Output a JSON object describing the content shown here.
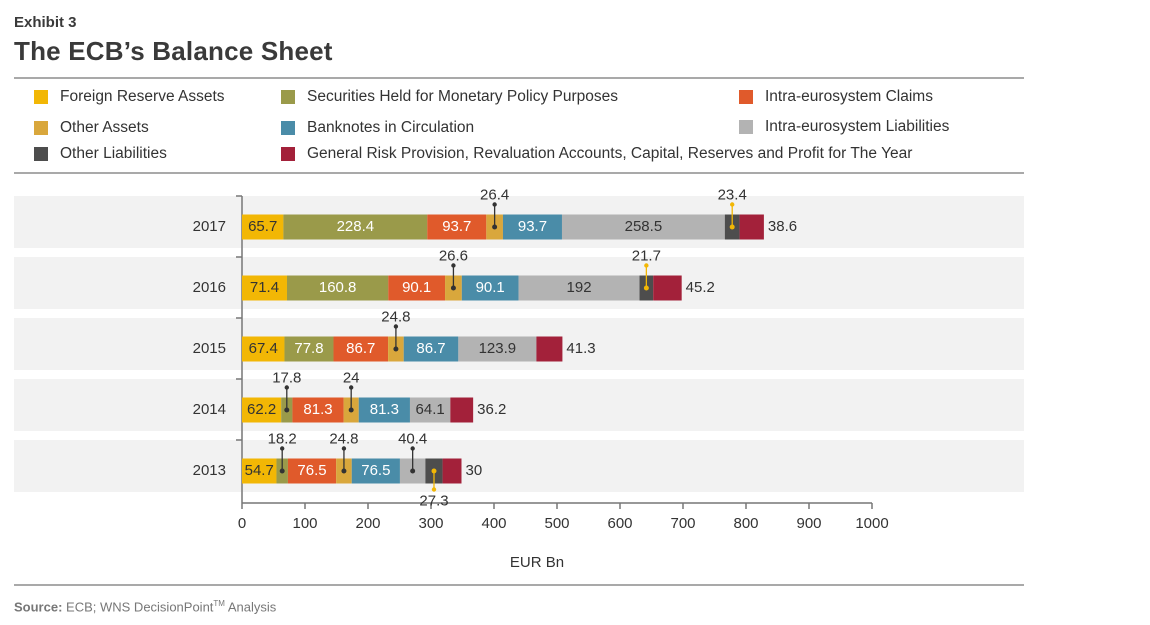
{
  "exhibit": "Exhibit 3",
  "title": "The ECB’s Balance Sheet",
  "source": {
    "label": "Source:",
    "text": "ECB; WNS DecisionPoint",
    "tm": "TM",
    "suffix": " Analysis"
  },
  "legend": [
    {
      "key": "fra",
      "label": "Foreign Reserve Assets",
      "color": "#f2b705"
    },
    {
      "key": "smp",
      "label": "Securities Held for Monetary Policy Purposes",
      "color": "#9a9a4a"
    },
    {
      "key": "iec",
      "label": "Intra-eurosystem Claims",
      "color": "#e05a2b"
    },
    {
      "key": "oa",
      "label": "Other Assets",
      "color": "#d9a73c"
    },
    {
      "key": "bn",
      "label": "Banknotes in Circulation",
      "color": "#4a8ca8"
    },
    {
      "key": "iel",
      "label": "Intra-eurosystem Liabilities",
      "color": "#b3b3b3"
    },
    {
      "key": "ol",
      "label": "Other Liabilities",
      "color": "#4d4d4d"
    },
    {
      "key": "grp",
      "label": "General Risk Provision, Revaluation Accounts, Capital, Reserves and Profit for The Year",
      "color": "#a3213a"
    }
  ],
  "chart_data": {
    "type": "bar",
    "orientation": "horizontal",
    "stacked": true,
    "categories": [
      "2017",
      "2016",
      "2015",
      "2014",
      "2013"
    ],
    "series": [
      {
        "name": "Foreign Reserve Assets",
        "color": "#f2b705",
        "values": [
          65.7,
          71.4,
          67.4,
          62.2,
          54.7
        ],
        "labels": [
          "65.7",
          "71.4",
          "67.4",
          "62.2",
          "54.7"
        ]
      },
      {
        "name": "Securities Held for Monetary Policy Purposes",
        "color": "#9a9a4a",
        "values": [
          228.4,
          160.8,
          77.8,
          17.8,
          18.2
        ],
        "labels": [
          "228.4",
          "160.8",
          "77.8",
          "17.8",
          "18.2"
        ]
      },
      {
        "name": "Intra-eurosystem Claims",
        "color": "#e05a2b",
        "values": [
          93.7,
          90.1,
          86.7,
          81.3,
          76.5
        ],
        "labels": [
          "93.7",
          "90.1",
          "86.7",
          "81.3",
          "76.5"
        ]
      },
      {
        "name": "Other Assets",
        "color": "#d9a73c",
        "values": [
          26.4,
          26.6,
          24.8,
          24,
          24.8
        ],
        "labels": [
          "26.4",
          "26.6",
          "24.8",
          "24",
          "24.8"
        ]
      },
      {
        "name": "Banknotes in Circulation",
        "color": "#4a8ca8",
        "values": [
          93.7,
          90.1,
          86.7,
          81.3,
          76.5
        ],
        "labels": [
          "93.7",
          "90.1",
          "86.7",
          "81.3",
          "76.5"
        ]
      },
      {
        "name": "Intra-eurosystem Liabilities",
        "color": "#b3b3b3",
        "values": [
          258.5,
          192,
          123.9,
          64.1,
          40.4
        ],
        "labels": [
          "258.5",
          "192",
          "123.9",
          "64.1",
          "40.4"
        ]
      },
      {
        "name": "Other Liabilities",
        "color": "#4d4d4d",
        "values": [
          23.4,
          21.7,
          0,
          0,
          27.3
        ],
        "labels": [
          "23.4",
          "21.7",
          "",
          "",
          "27.3"
        ]
      },
      {
        "name": "General Risk Provision, Revaluation Accounts, Capital, Reserves and Profit for The Year",
        "color": "#a3213a",
        "values": [
          38.6,
          45.2,
          41.3,
          36.2,
          30
        ],
        "labels": [
          "38.6",
          "45.2",
          "41.3",
          "36.2",
          "30"
        ]
      }
    ],
    "xlabel": "EUR Bn",
    "xlim": [
      0,
      1000
    ],
    "xticks": [
      "0",
      "100",
      "200",
      "300",
      "400",
      "500",
      "600",
      "700",
      "800",
      "900",
      "1000"
    ]
  }
}
